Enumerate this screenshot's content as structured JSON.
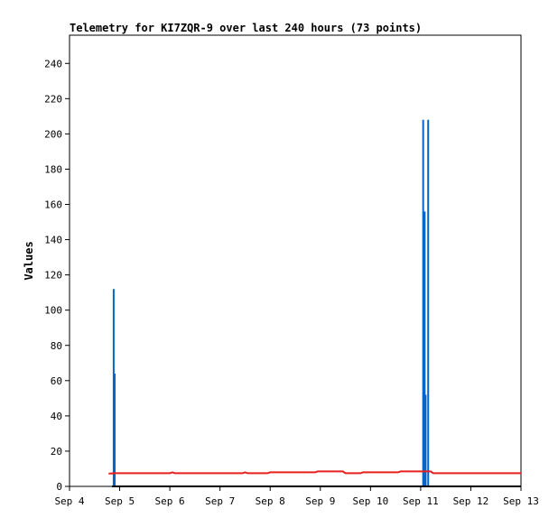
{
  "chart_data": {
    "type": "line",
    "title": "Telemetry for KI7ZQR-9 over last 240 hours (73 points)",
    "xlabel": "",
    "ylabel": "Values",
    "x_ticks": [
      "Sep 4",
      "Sep 5",
      "Sep 6",
      "Sep 7",
      "Sep 8",
      "Sep 9",
      "Sep 10",
      "Sep 11",
      "Sep 12",
      "Sep 13"
    ],
    "x_range_days": [
      4,
      13
    ],
    "y_ticks": [
      0,
      20,
      40,
      60,
      80,
      100,
      120,
      140,
      160,
      180,
      200,
      220,
      240
    ],
    "ylim": [
      0,
      256
    ],
    "grid": false,
    "series": [
      {
        "color": "#0066cc",
        "style": "spikes",
        "points": [
          {
            "day": 4.88,
            "value": 112
          },
          {
            "day": 4.9,
            "value": 64
          },
          {
            "day": 11.05,
            "value": 208
          },
          {
            "day": 11.08,
            "value": 156
          },
          {
            "day": 11.1,
            "value": 52
          },
          {
            "day": 11.15,
            "value": 208
          }
        ]
      },
      {
        "color": "#e8201c",
        "style": "line",
        "points": [
          {
            "day": 4.78,
            "value": 7.2
          },
          {
            "day": 4.9,
            "value": 7.5
          },
          {
            "day": 6.0,
            "value": 7.5
          },
          {
            "day": 6.05,
            "value": 8
          },
          {
            "day": 6.1,
            "value": 7.5
          },
          {
            "day": 7.45,
            "value": 7.5
          },
          {
            "day": 7.5,
            "value": 8
          },
          {
            "day": 7.55,
            "value": 7.5
          },
          {
            "day": 7.95,
            "value": 7.5
          },
          {
            "day": 8.0,
            "value": 8
          },
          {
            "day": 8.9,
            "value": 8
          },
          {
            "day": 8.95,
            "value": 8.5
          },
          {
            "day": 9.45,
            "value": 8.5
          },
          {
            "day": 9.5,
            "value": 7.5
          },
          {
            "day": 9.8,
            "value": 7.5
          },
          {
            "day": 9.85,
            "value": 8
          },
          {
            "day": 10.55,
            "value": 8
          },
          {
            "day": 10.6,
            "value": 8.5
          },
          {
            "day": 11.2,
            "value": 8.5
          },
          {
            "day": 11.25,
            "value": 7.5
          },
          {
            "day": 13.0,
            "value": 7.5
          }
        ]
      },
      {
        "color": "#000000",
        "style": "line",
        "points": [
          {
            "day": 4.85,
            "value": 0
          },
          {
            "day": 13.0,
            "value": 0
          }
        ]
      }
    ]
  }
}
